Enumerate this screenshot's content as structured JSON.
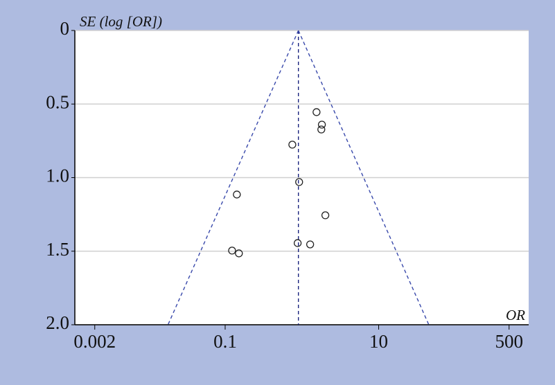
{
  "chart_data": {
    "type": "scatter",
    "y_label": "SE (log [OR])",
    "x_label": "OR",
    "xscale": "log",
    "y_inverted": true,
    "xlim": [
      0.0011,
      900
    ],
    "ylim": [
      0,
      2
    ],
    "xticks": [
      0.002,
      0.1,
      10,
      500
    ],
    "yticks": [
      0,
      0.5,
      {
        "value": 1,
        "label": "1.0"
      },
      1.5,
      {
        "value": 2,
        "label": "2.0"
      }
    ],
    "grid": true,
    "series": [
      {
        "color": "#222222",
        "x": [
          1.55,
          1.82,
          1.79,
          0.75,
          0.92,
          0.142,
          2.02,
          0.88,
          1.28,
          0.123,
          0.151
        ],
        "values": [
          0.555,
          0.64,
          0.673,
          0.776,
          1.03,
          1.115,
          1.256,
          1.445,
          1.454,
          1.496,
          1.515
        ]
      }
    ],
    "reference_lines": [
      {
        "color": "#1a237e",
        "x": [
          0.9,
          0.9
        ],
        "y": [
          0,
          2
        ]
      },
      {
        "color": "#3949ab",
        "x": [
          0.9,
          0.018
        ],
        "y": [
          0,
          2
        ]
      },
      {
        "color": "#3949ab",
        "x": [
          0.9,
          45
        ],
        "y": [
          0,
          2
        ]
      }
    ]
  }
}
